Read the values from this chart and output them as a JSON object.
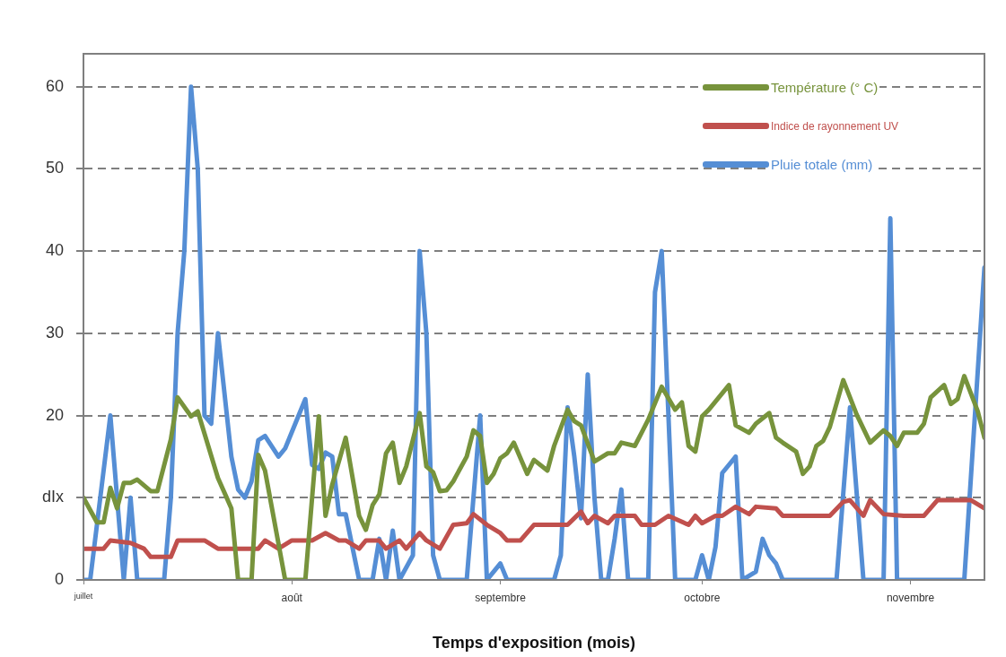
{
  "chart_data": {
    "type": "line",
    "xlabel": "Temps d'exposition (mois)",
    "xlim": [
      "--07-01",
      "--11-12"
    ],
    "xticks": [
      {
        "value": "--07-01",
        "label": "juillet"
      },
      {
        "value": "--08-01",
        "label": "août"
      },
      {
        "value": "--09-01",
        "label": "septembre"
      },
      {
        "value": "--10-01",
        "label": "octobre"
      },
      {
        "value": "--11-01",
        "label": "novembre"
      }
    ],
    "ylim": [
      0,
      64
    ],
    "yticks": [
      0,
      {
        "value": 10,
        "label": "dIx"
      },
      20,
      30,
      40,
      50,
      60
    ],
    "grid": "y",
    "legend": "top right",
    "marker": "none",
    "line_style": "solid",
    "series": [
      {
        "name": "Température (° C)",
        "color": "#77933c",
        "x": [
          "--07-01",
          "--07-03",
          "--07-04",
          "--07-05",
          "--07-06",
          "--07-07",
          "--07-08",
          "--07-09",
          "--07-11",
          "--07-12",
          "--07-14",
          "--07-15",
          "--07-17",
          "--07-18",
          "--07-21",
          "--07-23",
          "--07-24",
          "--07-26",
          "--07-27",
          "--07-28",
          "--07-31",
          "--08-03",
          "--08-05",
          "--08-06",
          "--08-07",
          "--08-09",
          "--08-11",
          "--08-12",
          "--08-13",
          "--08-14",
          "--08-15",
          "--08-16",
          "--08-17",
          "--08-18",
          "--08-20",
          "--08-21",
          "--08-22",
          "--08-23",
          "--08-24",
          "--08-25",
          "--08-27",
          "--08-28",
          "--08-29",
          "--08-30",
          "--08-31",
          "--09-01",
          "--09-02",
          "--09-03",
          "--09-05",
          "--09-06",
          "--09-08",
          "--09-09",
          "--09-11",
          "--09-12",
          "--09-13",
          "--09-15",
          "--09-17",
          "--09-18",
          "--09-19",
          "--09-21",
          "--09-22",
          "--09-23",
          "--09-25",
          "--09-27",
          "--09-28",
          "--09-29",
          "--09-30",
          "--10-01",
          "--10-02",
          "--10-05",
          "--10-06",
          "--10-08",
          "--10-09",
          "--10-11",
          "--10-12",
          "--10-13",
          "--10-15",
          "--10-16",
          "--10-17",
          "--10-18",
          "--10-19",
          "--10-20",
          "--10-22",
          "--10-24",
          "--10-26",
          "--10-28",
          "--10-29",
          "--10-30",
          "--10-31",
          "--11-02",
          "--11-03",
          "--11-04",
          "--11-06",
          "--11-07",
          "--11-08",
          "--11-09",
          "--11-11",
          "--11-12"
        ],
        "values": [
          10,
          7,
          7,
          11.2,
          8.7,
          11.8,
          11.8,
          12.2,
          10.8,
          10.8,
          17.1,
          22.2,
          19.9,
          20.5,
          12.4,
          8.7,
          0,
          0,
          15.2,
          13.3,
          0,
          0,
          19.9,
          7.8,
          11.6,
          17.3,
          7.8,
          6.1,
          9.1,
          10.4,
          15.4,
          16.7,
          11.8,
          13.8,
          20.3,
          13.8,
          13.1,
          10.8,
          10.9,
          12,
          15,
          18.2,
          17.5,
          11.8,
          12.9,
          14.8,
          15.4,
          16.7,
          12.9,
          14.6,
          13.3,
          16.3,
          20.7,
          19.3,
          18.8,
          14.4,
          15.4,
          15.4,
          16.7,
          16.3,
          17.9,
          19.5,
          23.5,
          20.7,
          21.6,
          16.3,
          15.6,
          19.9,
          20.7,
          23.7,
          18.8,
          17.9,
          19,
          20.3,
          17.3,
          16.7,
          15.6,
          12.9,
          13.8,
          16.3,
          16.9,
          18.6,
          24.3,
          20.1,
          16.7,
          18.2,
          17.5,
          16.3,
          17.9,
          17.9,
          19,
          22.2,
          23.7,
          21.4,
          22,
          24.8,
          20.5,
          17.3
        ]
      },
      {
        "name": "Indice de rayonnement UV",
        "color": "#c0504d",
        "x": [
          "--07-01",
          "--07-04",
          "--07-05",
          "--07-08",
          "--07-10",
          "--07-11",
          "--07-14",
          "--07-15",
          "--07-19",
          "--07-21",
          "--07-27",
          "--07-28",
          "--07-30",
          "--08-01",
          "--08-04",
          "--08-06",
          "--08-08",
          "--08-09",
          "--08-11",
          "--08-12",
          "--08-14",
          "--08-15",
          "--08-17",
          "--08-18",
          "--08-20",
          "--08-21",
          "--08-23",
          "--08-25",
          "--08-27",
          "--08-28",
          "--08-30",
          "--09-01",
          "--09-02",
          "--09-04",
          "--09-06",
          "--09-11",
          "--09-13",
          "--09-14",
          "--09-15",
          "--09-17",
          "--09-18",
          "--09-21",
          "--09-22",
          "--09-24",
          "--09-26",
          "--09-29",
          "--09-30",
          "--10-01",
          "--10-03",
          "--10-04",
          "--10-06",
          "--10-08",
          "--10-09",
          "--10-12",
          "--10-13",
          "--10-20",
          "--10-22",
          "--10-23",
          "--10-25",
          "--10-26",
          "--10-28",
          "--10-31",
          "--11-03",
          "--11-05",
          "--11-10",
          "--11-12"
        ],
        "values": [
          3.8,
          3.8,
          4.8,
          4.5,
          3.8,
          2.8,
          2.8,
          4.8,
          4.8,
          3.8,
          3.8,
          4.8,
          3.8,
          4.8,
          4.8,
          5.7,
          4.8,
          4.8,
          3.8,
          4.8,
          4.8,
          3.8,
          4.8,
          3.8,
          5.7,
          4.8,
          3.8,
          6.7,
          6.9,
          8,
          6.7,
          5.7,
          4.8,
          4.8,
          6.7,
          6.7,
          8.3,
          6.9,
          7.8,
          6.9,
          7.8,
          7.8,
          6.7,
          6.7,
          7.8,
          6.7,
          7.8,
          6.9,
          7.8,
          7.8,
          8.9,
          8,
          8.9,
          8.7,
          7.8,
          7.8,
          9.5,
          9.7,
          7.8,
          9.7,
          8,
          7.8,
          7.8,
          9.7,
          9.7,
          8.7
        ]
      },
      {
        "name": "Pluie totale (mm)",
        "color": "#558ed5",
        "x": [
          "--07-01",
          "--07-02",
          "--07-05",
          "--07-07",
          "--07-08",
          "--07-09",
          "--07-13",
          "--07-14",
          "--07-15",
          "--07-16",
          "--07-17",
          "--07-18",
          "--07-19",
          "--07-20",
          "--07-21",
          "--07-23",
          "--07-24",
          "--07-25",
          "--07-26",
          "--07-27",
          "--07-28",
          "--07-30",
          "--07-31",
          "--08-02",
          "--08-03",
          "--08-04",
          "--08-05",
          "--08-06",
          "--08-07",
          "--08-08",
          "--08-09",
          "--08-11",
          "--08-13",
          "--08-14",
          "--08-15",
          "--08-16",
          "--08-17",
          "--08-19",
          "--08-20",
          "--08-21",
          "--08-22",
          "--08-23",
          "--08-27",
          "--08-29",
          "--08-30",
          "--08-31",
          "--09-01",
          "--09-02",
          "--09-09",
          "--09-10",
          "--09-11",
          "--09-12",
          "--09-13",
          "--09-14",
          "--09-15",
          "--09-16",
          "--09-17",
          "--09-18",
          "--09-19",
          "--09-20",
          "--09-23",
          "--09-24",
          "--09-25",
          "--09-27",
          "--09-30",
          "--10-01",
          "--10-02",
          "--10-03",
          "--10-04",
          "--10-06",
          "--10-07",
          "--10-09",
          "--10-10",
          "--10-11",
          "--10-12",
          "--10-13",
          "--10-21",
          "--10-23",
          "--10-25",
          "--10-28",
          "--10-29",
          "--10-30",
          "--11-09",
          "--11-12"
        ],
        "values": [
          0,
          0,
          20,
          0,
          10,
          0,
          0,
          10,
          30,
          40,
          60,
          50,
          20,
          19,
          30,
          15,
          11,
          10,
          12,
          17,
          17.5,
          15,
          16,
          20,
          22,
          14,
          13.5,
          15.5,
          15,
          8,
          8,
          0,
          0,
          5,
          0,
          6,
          0,
          3,
          40,
          30,
          3,
          0,
          0,
          20,
          0,
          1,
          2,
          0,
          0,
          3,
          21,
          15,
          7.5,
          25,
          10,
          0,
          0,
          5,
          11,
          0,
          0,
          35,
          40,
          0,
          0,
          3,
          0,
          4,
          13,
          15,
          0,
          1,
          5,
          3,
          2,
          0,
          0,
          21,
          0,
          0,
          44,
          0,
          0,
          38
        ]
      }
    ]
  }
}
